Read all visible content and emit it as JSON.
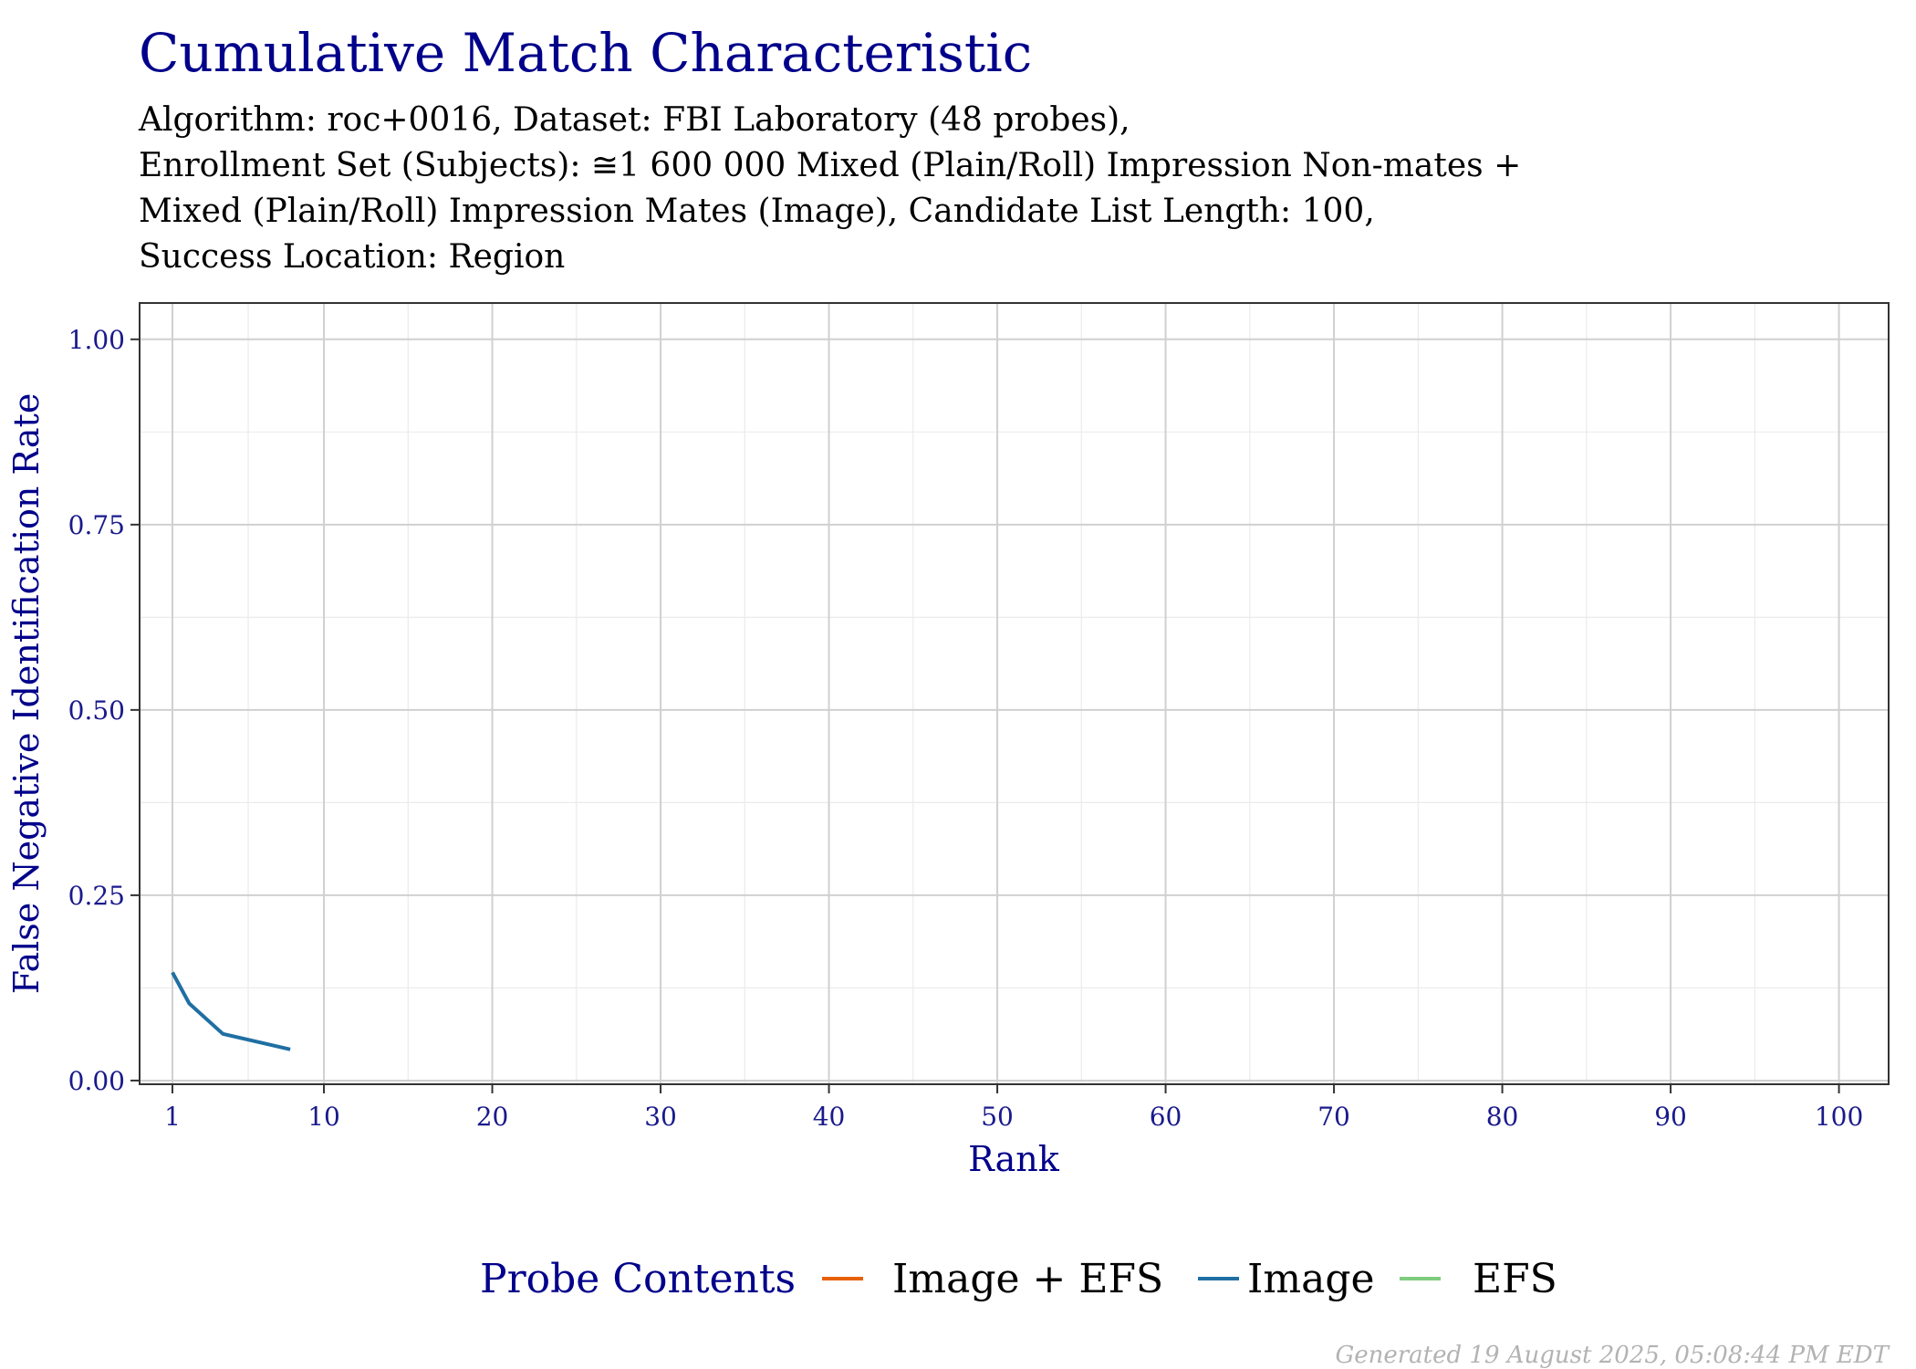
{
  "chart_data": {
    "type": "line",
    "title": "Cumulative Match Characteristic",
    "subtitle_lines": [
      "Algorithm: roc+0016, Dataset: FBI Laboratory (48 probes),",
      "Enrollment Set (Subjects):  ≅1 600 000 Mixed (Plain/Roll) Impression Non-mates +",
      "Mixed (Plain/Roll) Impression Mates (Image), Candidate List Length: 100,",
      "Success Location: Region"
    ],
    "xlabel": "Rank",
    "ylabel": "False Negative Identification Rate",
    "xlim": [
      1,
      100
    ],
    "ylim": [
      0,
      1
    ],
    "x_ticks": [
      1,
      10,
      20,
      30,
      40,
      50,
      60,
      70,
      80,
      90,
      100
    ],
    "x_tick_labels": [
      "1",
      "10",
      "20",
      "30",
      "40",
      "50",
      "60",
      "70",
      "80",
      "90",
      "100"
    ],
    "y_ticks": [
      0,
      0.25,
      0.5,
      0.75,
      1.0
    ],
    "y_tick_labels": [
      "0.00",
      "0.25",
      "0.50",
      "0.75",
      "1.00"
    ],
    "grid": true,
    "legend_position": "bottom",
    "legend_title": "Probe Contents",
    "series": [
      {
        "name": "Image + EFS",
        "color": "#E66101",
        "points": []
      },
      {
        "name": "Image",
        "color": "#1F6FA3",
        "points": [
          {
            "x": 1,
            "y": 0.146
          },
          {
            "x": 2,
            "y": 0.104
          },
          {
            "x": 4,
            "y": 0.063
          },
          {
            "x": 8,
            "y": 0.042
          }
        ]
      },
      {
        "name": "EFS",
        "color": "#7FCC7F",
        "points": []
      }
    ]
  },
  "footer": {
    "generated": "Generated 19 August 2025, 05:08:44 PM EDT"
  },
  "colors": {
    "title": "#00008B",
    "axis_text": "#1A1A8C",
    "grid_major": "#D0D0D0",
    "grid_minor": "#EBEBEB",
    "panel_border": "#333333",
    "footer": "#B3B3B3"
  }
}
